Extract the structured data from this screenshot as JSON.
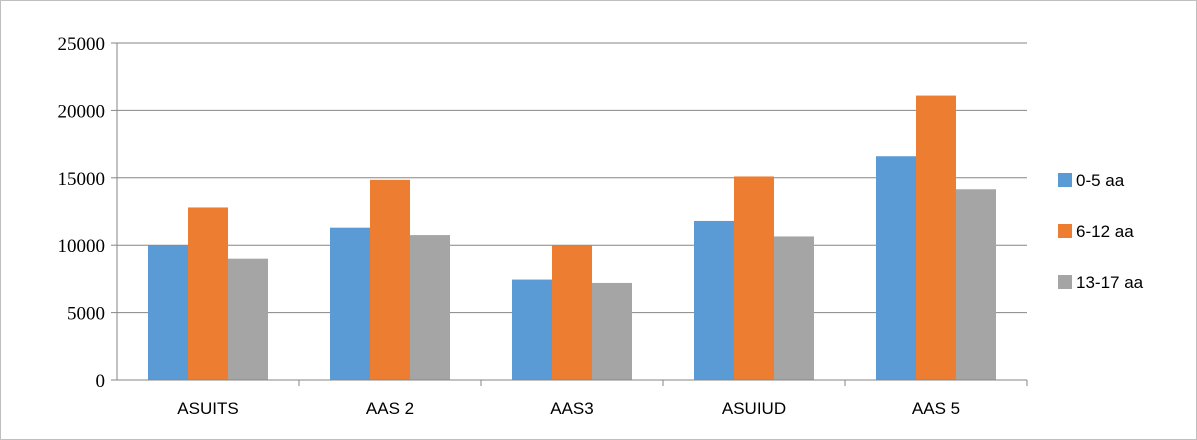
{
  "chart_data": {
    "type": "bar",
    "categories": [
      "ASUITS",
      "AAS 2",
      "AAS3",
      "ASUIUD",
      "AAS 5"
    ],
    "series": [
      {
        "name": "0-5 aa",
        "color": "#5b9bd5",
        "values": [
          10000,
          11300,
          7450,
          11800,
          16600
        ]
      },
      {
        "name": "6-12 aa",
        "color": "#ed7d31",
        "values": [
          12800,
          14850,
          10000,
          15100,
          21100
        ]
      },
      {
        "name": "13-17 aa",
        "color": "#a5a5a5",
        "values": [
          9000,
          10750,
          7200,
          10650,
          14150
        ]
      }
    ],
    "ylim": [
      0,
      25000
    ],
    "yticks": [
      0,
      5000,
      10000,
      15000,
      20000,
      25000
    ],
    "title": "",
    "xlabel": "",
    "ylabel": "",
    "grid": true,
    "legend_position": "right"
  }
}
